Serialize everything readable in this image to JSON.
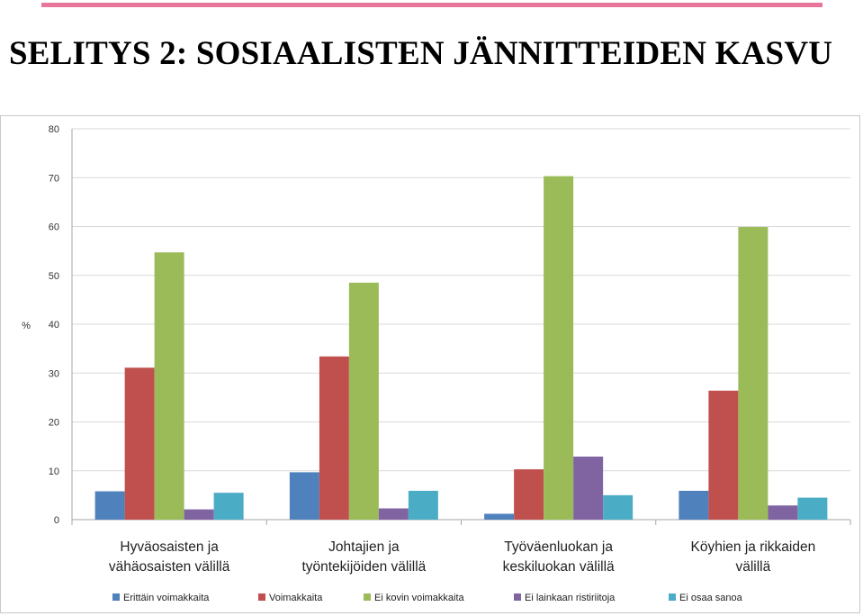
{
  "slide": {
    "title": "SELITYS 2: SOSIAALISTEN JÄNNITTEIDEN KASVU",
    "accent_color": "#e8769a"
  },
  "chart_data": {
    "type": "bar",
    "title": "",
    "xlabel": "",
    "ylabel": "%",
    "ylim": [
      0,
      80
    ],
    "yticks": [
      0,
      10,
      20,
      30,
      40,
      50,
      60,
      70,
      80
    ],
    "grid": true,
    "legend_position": "bottom",
    "categories": [
      [
        "Hyväosaisten ja",
        "vähäosaisten välillä"
      ],
      [
        "Johtajien ja",
        "työntekijöiden välillä"
      ],
      [
        "Työväenluokan ja",
        "keskiluokan välillä"
      ],
      [
        "Köyhien ja rikkaiden",
        "välillä"
      ]
    ],
    "series": [
      {
        "name": "Erittäin voimakkaita",
        "color": "#4f81bd",
        "values": [
          5.8,
          9.7,
          1.2,
          5.9
        ]
      },
      {
        "name": "Voimakkaita",
        "color": "#c0504d",
        "values": [
          31.1,
          33.4,
          10.3,
          26.4
        ]
      },
      {
        "name": "Ei kovin voimakkaita",
        "color": "#9bbb59",
        "values": [
          54.7,
          48.5,
          70.3,
          59.9
        ]
      },
      {
        "name": "Ei lainkaan ristiriitoja",
        "color": "#8064a2",
        "values": [
          2.1,
          2.3,
          12.9,
          2.9
        ]
      },
      {
        "name": "Ei osaa sanoa",
        "color": "#4bacc6",
        "values": [
          5.5,
          5.9,
          5.0,
          4.5
        ]
      }
    ]
  }
}
